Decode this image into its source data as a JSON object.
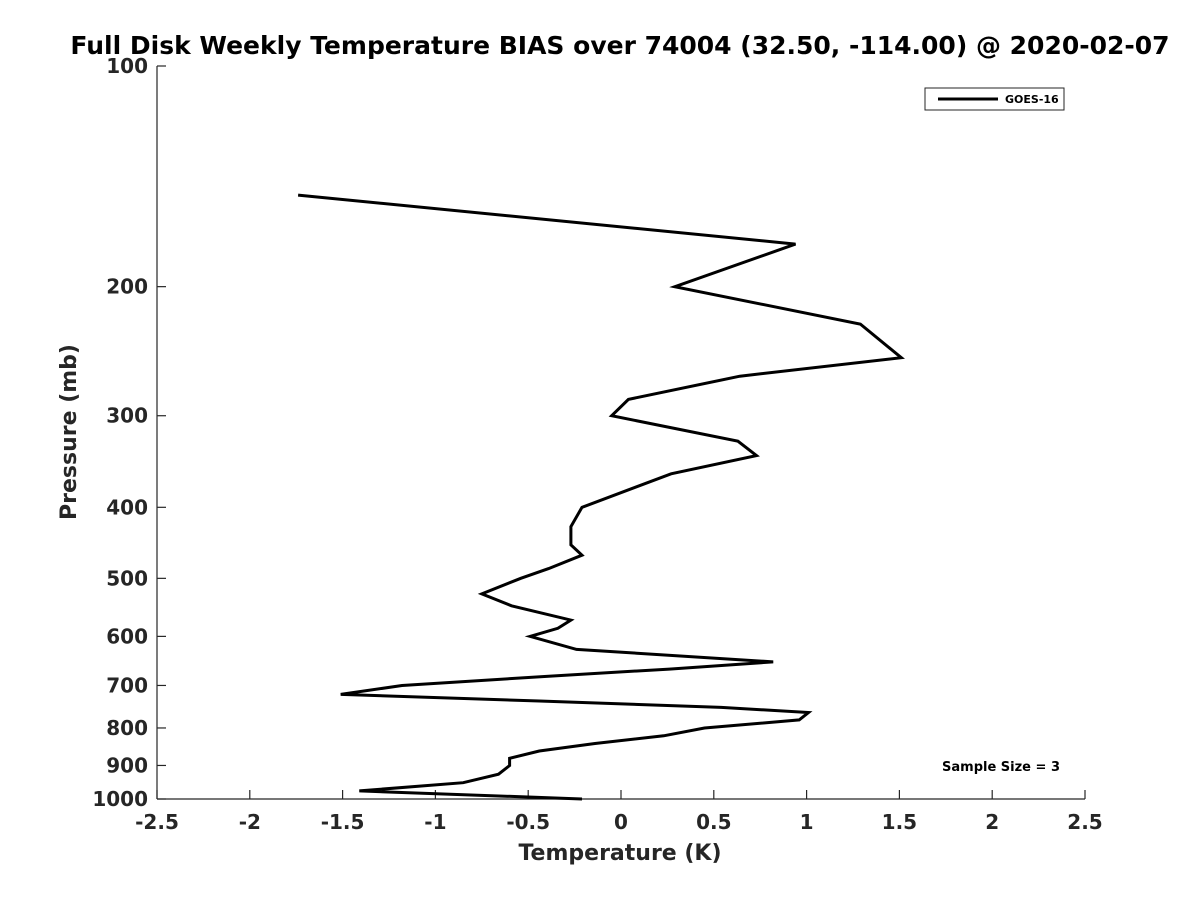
{
  "chart_data": {
    "type": "line",
    "title": "Full Disk Weekly Temperature BIAS over 74004 (32.50, -114.00) @ 2020-02-07",
    "xlabel": "Temperature (K)",
    "ylabel": "Pressure (mb)",
    "xlim": [
      -2.5,
      2.5
    ],
    "ylim": [
      100,
      1000
    ],
    "y_scale": "log",
    "y_reversed": true,
    "x_ticks": [
      -2.5,
      -2,
      -1.5,
      -1,
      -0.5,
      0,
      0.5,
      1,
      1.5,
      2,
      2.5
    ],
    "x_tick_labels": [
      "-2.5",
      "-2",
      "-1.5",
      "-1",
      "-0.5",
      "0",
      "0.5",
      "1",
      "1.5",
      "2",
      "2.5"
    ],
    "y_ticks": [
      100,
      200,
      300,
      400,
      500,
      600,
      700,
      800,
      900,
      1000
    ],
    "y_tick_labels": [
      "100",
      "200",
      "300",
      "400",
      "500",
      "600",
      "700",
      "800",
      "900",
      "1000"
    ],
    "grid": false,
    "legend_position": "top-right",
    "series": [
      {
        "name": "GOES-16",
        "color": "#000000",
        "points": [
          {
            "x": -1.74,
            "p": 150
          },
          {
            "x": 0.94,
            "p": 175
          },
          {
            "x": 0.29,
            "p": 200
          },
          {
            "x": 1.29,
            "p": 225
          },
          {
            "x": 1.51,
            "p": 250
          },
          {
            "x": 0.64,
            "p": 265
          },
          {
            "x": 0.04,
            "p": 285
          },
          {
            "x": -0.05,
            "p": 300
          },
          {
            "x": 0.63,
            "p": 325
          },
          {
            "x": 0.73,
            "p": 340
          },
          {
            "x": 0.27,
            "p": 360
          },
          {
            "x": -0.21,
            "p": 400
          },
          {
            "x": -0.27,
            "p": 425
          },
          {
            "x": -0.27,
            "p": 450
          },
          {
            "x": -0.21,
            "p": 465
          },
          {
            "x": -0.39,
            "p": 485
          },
          {
            "x": -0.54,
            "p": 500
          },
          {
            "x": -0.75,
            "p": 525
          },
          {
            "x": -0.59,
            "p": 545
          },
          {
            "x": -0.27,
            "p": 570
          },
          {
            "x": -0.34,
            "p": 585
          },
          {
            "x": -0.49,
            "p": 600
          },
          {
            "x": -0.24,
            "p": 625
          },
          {
            "x": 0.82,
            "p": 650
          },
          {
            "x": 0.26,
            "p": 665
          },
          {
            "x": -0.39,
            "p": 680
          },
          {
            "x": -1.18,
            "p": 700
          },
          {
            "x": -1.51,
            "p": 720
          },
          {
            "x": -0.44,
            "p": 735
          },
          {
            "x": 0.54,
            "p": 750
          },
          {
            "x": 1.01,
            "p": 762
          },
          {
            "x": 0.96,
            "p": 780
          },
          {
            "x": 0.45,
            "p": 800
          },
          {
            "x": 0.23,
            "p": 820
          },
          {
            "x": -0.14,
            "p": 840
          },
          {
            "x": -0.44,
            "p": 860
          },
          {
            "x": -0.6,
            "p": 880
          },
          {
            "x": -0.6,
            "p": 900
          },
          {
            "x": -0.66,
            "p": 925
          },
          {
            "x": -0.85,
            "p": 950
          },
          {
            "x": -1.41,
            "p": 975
          },
          {
            "x": -0.21,
            "p": 1000
          }
        ]
      }
    ],
    "annotation": "Sample Size = 3"
  }
}
